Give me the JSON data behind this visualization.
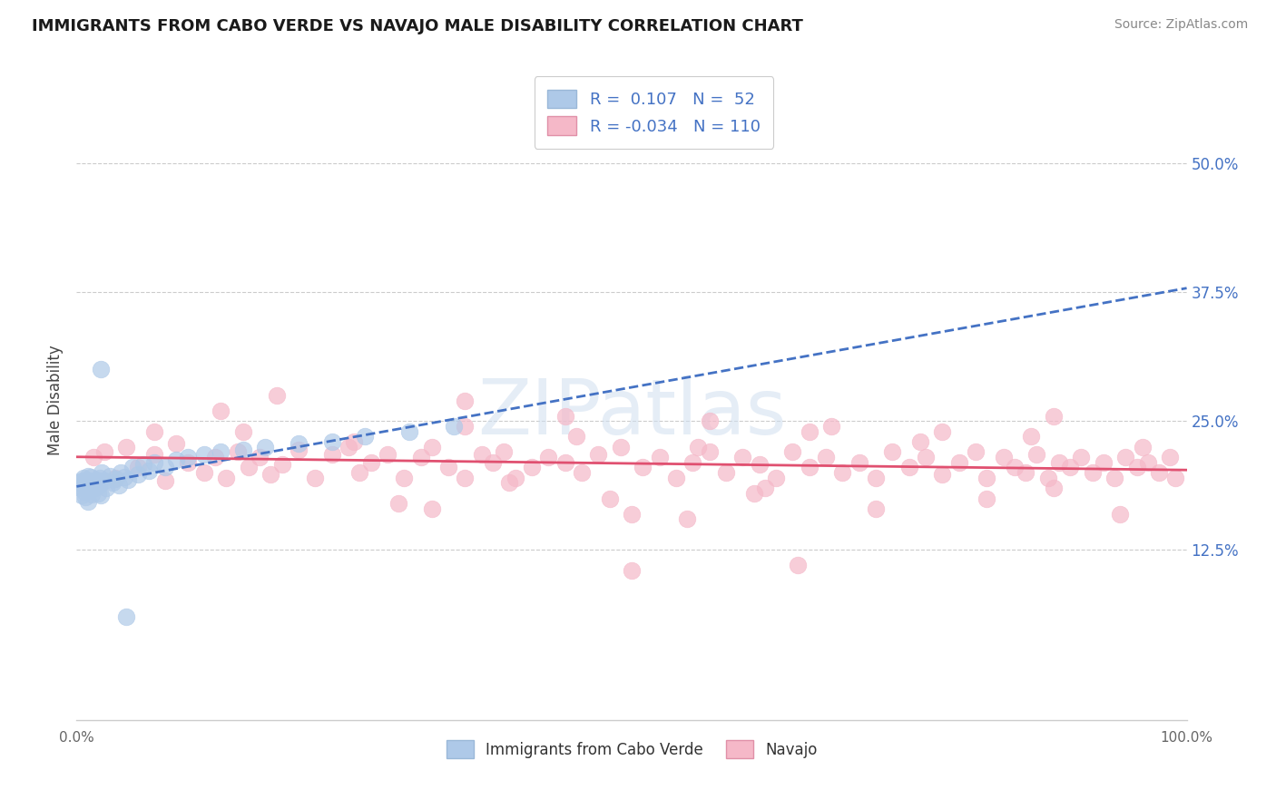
{
  "title": "IMMIGRANTS FROM CABO VERDE VS NAVAJO MALE DISABILITY CORRELATION CHART",
  "source": "Source: ZipAtlas.com",
  "ylabel": "Male Disability",
  "xlim": [
    0.0,
    1.0
  ],
  "ylim": [
    -0.04,
    0.58
  ],
  "yticks": [
    0.125,
    0.25,
    0.375,
    0.5
  ],
  "ytick_labels": [
    "12.5%",
    "25.0%",
    "37.5%",
    "50.0%"
  ],
  "xtick_labels": [
    "0.0%",
    "100.0%"
  ],
  "color_blue_fill": "#aec9e8",
  "color_blue_edge": "#aec9e8",
  "color_pink_fill": "#f5b8c8",
  "color_pink_edge": "#f5b8c8",
  "color_blue_line": "#4472c4",
  "color_pink_line": "#e05070",
  "label1": "Immigrants from Cabo Verde",
  "label2": "Navajo",
  "watermark": "ZIPatlas",
  "r1": 0.107,
  "n1": 52,
  "r2": -0.034,
  "n2": 110,
  "legend_text_color": "#4472c4",
  "ytick_color": "#4472c4",
  "background_color": "#ffffff",
  "blue_x": [
    0.003,
    0.004,
    0.005,
    0.005,
    0.006,
    0.007,
    0.007,
    0.008,
    0.009,
    0.01,
    0.01,
    0.011,
    0.012,
    0.013,
    0.014,
    0.015,
    0.016,
    0.017,
    0.018,
    0.019,
    0.02,
    0.021,
    0.022,
    0.023,
    0.025,
    0.027,
    0.03,
    0.032,
    0.035,
    0.038,
    0.04,
    0.043,
    0.046,
    0.05,
    0.055,
    0.06,
    0.065,
    0.07,
    0.08,
    0.09,
    0.1,
    0.115,
    0.13,
    0.15,
    0.17,
    0.2,
    0.23,
    0.26,
    0.3,
    0.34,
    0.022,
    0.045
  ],
  "blue_y": [
    0.19,
    0.185,
    0.192,
    0.178,
    0.195,
    0.182,
    0.188,
    0.176,
    0.193,
    0.197,
    0.172,
    0.189,
    0.183,
    0.196,
    0.179,
    0.191,
    0.185,
    0.187,
    0.193,
    0.18,
    0.188,
    0.195,
    0.178,
    0.2,
    0.192,
    0.185,
    0.197,
    0.19,
    0.194,
    0.188,
    0.2,
    0.196,
    0.193,
    0.205,
    0.198,
    0.208,
    0.202,
    0.21,
    0.205,
    0.212,
    0.215,
    0.218,
    0.22,
    0.222,
    0.225,
    0.228,
    0.23,
    0.235,
    0.24,
    0.245,
    0.3,
    0.06
  ],
  "pink_x": [
    0.015,
    0.025,
    0.035,
    0.045,
    0.055,
    0.07,
    0.08,
    0.09,
    0.1,
    0.115,
    0.125,
    0.135,
    0.145,
    0.155,
    0.165,
    0.175,
    0.185,
    0.2,
    0.215,
    0.23,
    0.245,
    0.255,
    0.265,
    0.28,
    0.295,
    0.31,
    0.32,
    0.335,
    0.35,
    0.365,
    0.375,
    0.385,
    0.395,
    0.41,
    0.425,
    0.44,
    0.455,
    0.47,
    0.49,
    0.51,
    0.525,
    0.54,
    0.555,
    0.57,
    0.585,
    0.6,
    0.615,
    0.63,
    0.645,
    0.66,
    0.675,
    0.69,
    0.705,
    0.72,
    0.735,
    0.75,
    0.765,
    0.78,
    0.795,
    0.81,
    0.82,
    0.835,
    0.845,
    0.855,
    0.865,
    0.875,
    0.885,
    0.895,
    0.905,
    0.915,
    0.925,
    0.935,
    0.945,
    0.955,
    0.965,
    0.975,
    0.985,
    0.99,
    0.32,
    0.48,
    0.55,
    0.62,
    0.29,
    0.39,
    0.5,
    0.61,
    0.72,
    0.82,
    0.88,
    0.94,
    0.15,
    0.25,
    0.35,
    0.45,
    0.56,
    0.66,
    0.76,
    0.86,
    0.96,
    0.07,
    0.13,
    0.44,
    0.57,
    0.68,
    0.78,
    0.88,
    0.18,
    0.35,
    0.5,
    0.65
  ],
  "pink_y": [
    0.215,
    0.22,
    0.195,
    0.225,
    0.205,
    0.218,
    0.192,
    0.228,
    0.21,
    0.2,
    0.215,
    0.195,
    0.22,
    0.205,
    0.215,
    0.198,
    0.208,
    0.222,
    0.195,
    0.218,
    0.225,
    0.2,
    0.21,
    0.218,
    0.195,
    0.215,
    0.225,
    0.205,
    0.195,
    0.218,
    0.21,
    0.22,
    0.195,
    0.205,
    0.215,
    0.21,
    0.2,
    0.218,
    0.225,
    0.205,
    0.215,
    0.195,
    0.21,
    0.22,
    0.2,
    0.215,
    0.208,
    0.195,
    0.22,
    0.205,
    0.215,
    0.2,
    0.21,
    0.195,
    0.22,
    0.205,
    0.215,
    0.198,
    0.21,
    0.22,
    0.195,
    0.215,
    0.205,
    0.2,
    0.218,
    0.195,
    0.21,
    0.205,
    0.215,
    0.2,
    0.21,
    0.195,
    0.215,
    0.205,
    0.21,
    0.2,
    0.215,
    0.195,
    0.165,
    0.175,
    0.155,
    0.185,
    0.17,
    0.19,
    0.16,
    0.18,
    0.165,
    0.175,
    0.185,
    0.16,
    0.24,
    0.23,
    0.245,
    0.235,
    0.225,
    0.24,
    0.23,
    0.235,
    0.225,
    0.24,
    0.26,
    0.255,
    0.25,
    0.245,
    0.24,
    0.255,
    0.275,
    0.27,
    0.105,
    0.11
  ]
}
